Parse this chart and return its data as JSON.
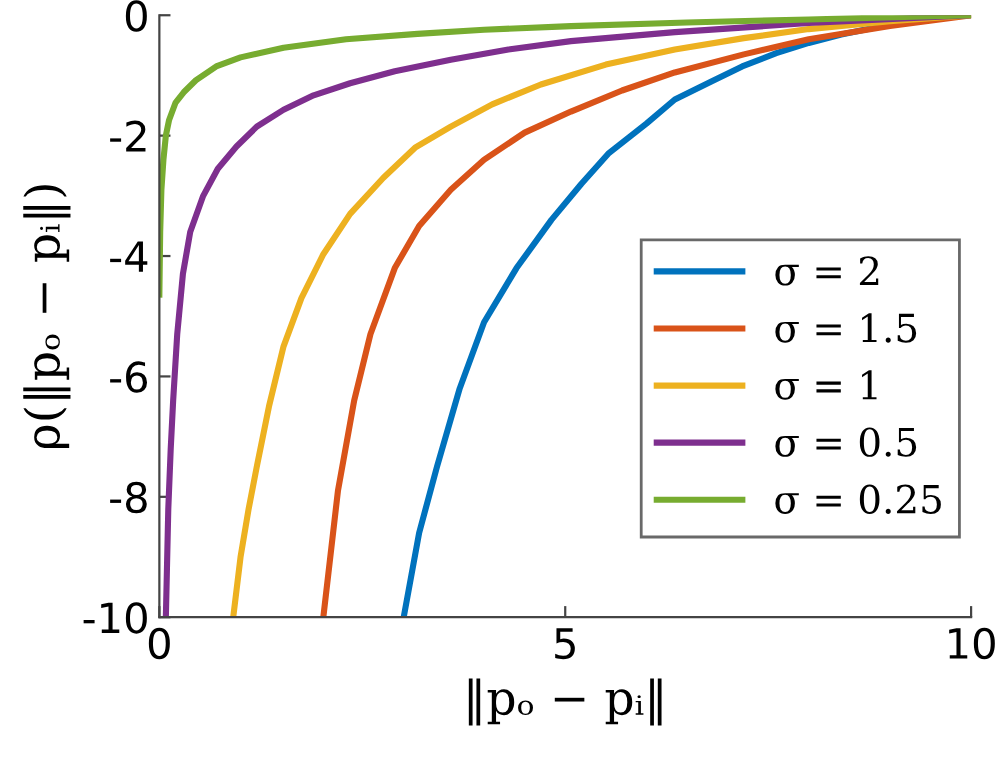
{
  "chart_data": {
    "type": "line",
    "xlabel": "‖pₒ − pᵢ‖",
    "ylabel": "ρ(‖pₒ − pᵢ‖)",
    "xlim": [
      0,
      10
    ],
    "ylim": [
      -10,
      0
    ],
    "xticks": [
      0,
      5,
      10
    ],
    "yticks": [
      {
        "value": -10,
        "label": "-10"
      },
      {
        "value": -8,
        "label": "-8"
      },
      {
        "value": -6,
        "label": "-6"
      },
      {
        "value": -4,
        "label": "-4"
      },
      {
        "value": -2,
        "label": "-2"
      },
      0
    ],
    "grid": false,
    "legend": "right",
    "line_style": "solid",
    "marker": "none",
    "series": [
      {
        "name": "σ = 2",
        "color": "#0072bd",
        "x": [
          3.01,
          3.2,
          3.42,
          3.7,
          4.0,
          4.4,
          4.83,
          5.2,
          5.53,
          6.0,
          6.35,
          6.8,
          7.18,
          7.6,
          8.0,
          8.4,
          8.83
        ],
        "values": [
          -10,
          -8.6,
          -7.5,
          -6.2,
          -5.1,
          -4.2,
          -3.4,
          -2.8,
          -2.3,
          -1.8,
          -1.4,
          -1.1,
          -0.85,
          -0.63,
          -0.46,
          -0.32,
          -0.2
        ]
      },
      {
        "name": "σ = 1.5",
        "color": "#d95319",
        "x": [
          2.02,
          2.2,
          2.4,
          2.6,
          2.9,
          3.2,
          3.59,
          4.0,
          4.5,
          5.07,
          5.7,
          6.35,
          7.2,
          8.0,
          9.0,
          10
        ],
        "values": [
          -10,
          -7.9,
          -6.4,
          -5.3,
          -4.2,
          -3.5,
          -2.9,
          -2.4,
          -1.95,
          -1.6,
          -1.25,
          -0.95,
          -0.65,
          -0.4,
          -0.18,
          0
        ]
      },
      {
        "name": "σ = 1",
        "color": "#edb120",
        "x": [
          0.91,
          1.0,
          1.1,
          1.2,
          1.35,
          1.53,
          1.75,
          2.02,
          2.35,
          2.76,
          3.15,
          3.59,
          4.1,
          4.7,
          5.5,
          6.35,
          7.2,
          8.0,
          9.0,
          10
        ],
        "values": [
          -10,
          -9.0,
          -8.2,
          -7.5,
          -6.5,
          -5.5,
          -4.7,
          -3.97,
          -3.3,
          -2.7,
          -2.2,
          -1.85,
          -1.48,
          -1.15,
          -0.82,
          -0.57,
          -0.38,
          -0.23,
          -0.1,
          0
        ]
      },
      {
        "name": "σ = 0.5",
        "color": "#7e2f8e",
        "x": [
          0.08,
          0.11,
          0.14,
          0.17,
          0.22,
          0.29,
          0.38,
          0.54,
          0.72,
          0.95,
          1.2,
          1.53,
          1.9,
          2.35,
          2.9,
          3.59,
          4.3,
          5.07,
          6.35,
          8.0,
          10
        ],
        "values": [
          -10,
          -8.2,
          -7.2,
          -6.4,
          -5.3,
          -4.3,
          -3.6,
          -3.0,
          -2.55,
          -2.18,
          -1.85,
          -1.57,
          -1.33,
          -1.13,
          -0.93,
          -0.74,
          -0.57,
          -0.43,
          -0.28,
          -0.13,
          0
        ]
      },
      {
        "name": "σ = 0.25",
        "color": "#77ac30",
        "x": [
          0,
          0.01,
          0.025,
          0.05,
          0.08,
          0.12,
          0.2,
          0.3,
          0.45,
          0.7,
          1.0,
          1.53,
          2.3,
          3.18,
          4.0,
          5.07,
          6.5,
          8.0,
          10
        ],
        "values": [
          -4.64,
          -3.6,
          -2.9,
          -2.4,
          -2.0,
          -1.74,
          -1.45,
          -1.28,
          -1.08,
          -0.85,
          -0.7,
          -0.54,
          -0.4,
          -0.31,
          -0.24,
          -0.18,
          -0.12,
          -0.07,
          0
        ]
      }
    ]
  }
}
